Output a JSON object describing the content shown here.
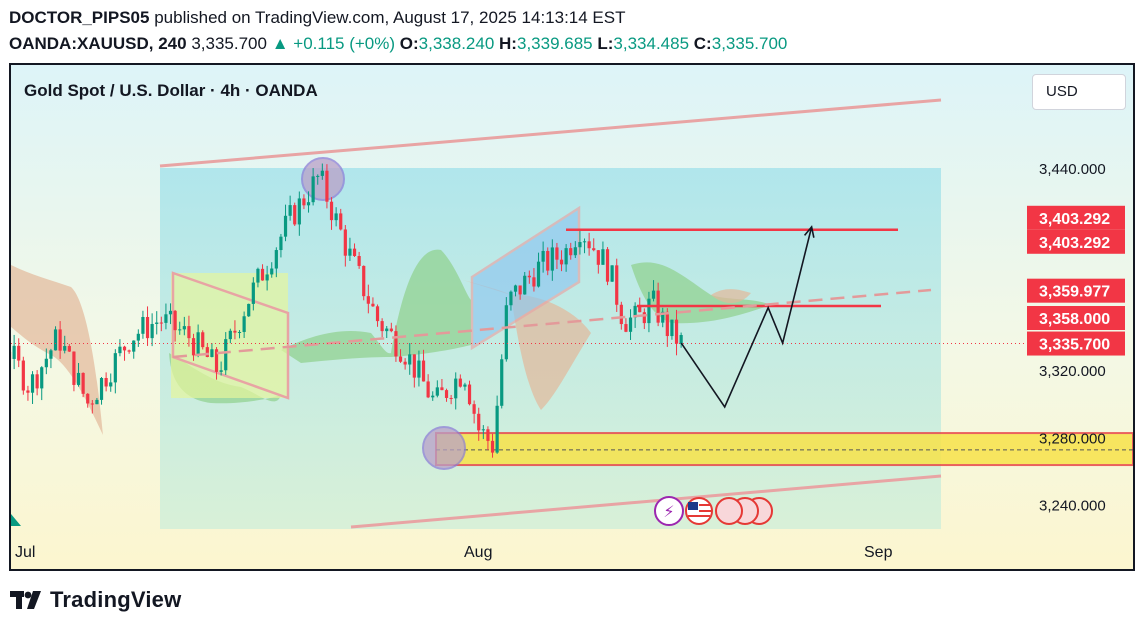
{
  "header": {
    "author": "DOCTOR_PIPS05",
    "published_text": "published on TradingView.com, August 17, 2025 14:13:14 EST",
    "symbol": "OANDA:XAUUSD, 240",
    "price": "3,335.700",
    "change": "+0.115 (+0%)",
    "open_label": "O:",
    "open": "3,338.240",
    "high_label": "H:",
    "high": "3,339.685",
    "low_label": "L:",
    "low": "3,334.485",
    "close_label": "C:",
    "close": "3,335.700"
  },
  "chart": {
    "title": "Gold Spot / U.S. Dollar · 4h · OANDA",
    "currency_button": "USD"
  },
  "footer": {
    "brand": "TradingView"
  },
  "colors": {
    "up": "#089981",
    "down": "#f23645",
    "level_line": "#f23645",
    "range_fill": "#a8e3eb",
    "support_zone": "#f7e34a"
  },
  "chart_data": {
    "type": "candlestick",
    "title": "Gold Spot / U.S. Dollar · 4h · OANDA",
    "x_ticks": [
      "Jul",
      "Aug",
      "Sep"
    ],
    "y_ticks": [
      "3,440.000",
      "3,320.000",
      "3,280.000",
      "3,240.000"
    ],
    "y_range": [
      3228,
      3488
    ],
    "price_labels": [
      {
        "text": "3,403.292",
        "value": 3403.292
      },
      {
        "text": "3,403.292",
        "value": 3403.292
      },
      {
        "text": "3,359.977",
        "value": 3359.977
      },
      {
        "text": "3,358.000",
        "value": 3358.0
      },
      {
        "text": "3,335.700",
        "value": 3335.7
      }
    ],
    "current_price": 3335.7,
    "horizontal_levels": [
      3403.292,
      3358.0
    ],
    "support_zone": [
      3263.5,
      3282.5
    ],
    "support_midline": 3272.5,
    "upper_channel": [
      [
        "Jun 30",
        3437
      ],
      [
        "Aug 16",
        3473
      ]
    ],
    "lower_channel": [
      [
        "Jun 30",
        3210
      ],
      [
        "Aug 16",
        3263
      ]
    ],
    "candles_approx": [
      [
        "Jun 23",
        3270
      ],
      [
        "Jun 25",
        3330
      ],
      [
        "Jun 27",
        3350
      ],
      [
        "Jun 30",
        3340
      ],
      [
        "Jul 2",
        3310
      ],
      [
        "Jul 4",
        3340
      ],
      [
        "Jul 6",
        3300
      ],
      [
        "Jul 9",
        3340
      ],
      [
        "Jul 11",
        3350
      ],
      [
        "Jul 13",
        3340
      ],
      [
        "Jul 15",
        3320
      ],
      [
        "Jul 17",
        3360
      ],
      [
        "Jul 20",
        3410
      ],
      [
        "Jul 22",
        3435
      ],
      [
        "Jul 24",
        3390
      ],
      [
        "Jul 26",
        3350
      ],
      [
        "Jul 28",
        3330
      ],
      [
        "Jul 30",
        3300
      ],
      [
        "Aug 1",
        3320
      ],
      [
        "Aug 2",
        3285
      ],
      [
        "Aug 3",
        3275
      ],
      [
        "Aug 4",
        3360
      ],
      [
        "Aug 6",
        3380
      ],
      [
        "Aug 8",
        3390
      ],
      [
        "Aug 9",
        3405
      ],
      [
        "Aug 11",
        3380
      ],
      [
        "Aug 12",
        3350
      ],
      [
        "Aug 13",
        3350
      ],
      [
        "Aug 14",
        3360
      ],
      [
        "Aug 15",
        3345
      ],
      [
        "Aug 16",
        3336
      ]
    ],
    "projection_path": [
      [
        "Aug 16",
        3336
      ],
      [
        "Aug 19",
        3298
      ],
      [
        "Aug 22",
        3357
      ],
      [
        "Aug 23",
        3336
      ],
      [
        "Aug 25",
        3405
      ]
    ],
    "annotations": [
      "upper high circle",
      "lower low circle",
      "bull flag channel",
      "bear flag channel",
      "support zone",
      "projection arrow"
    ]
  }
}
